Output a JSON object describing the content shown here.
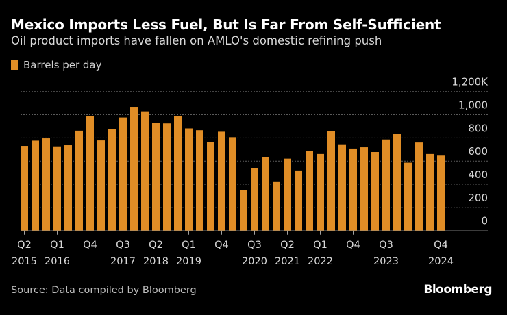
{
  "chart_data": {
    "type": "bar",
    "title": "Mexico Imports Less Fuel, But Is Far From Self-Sufficient",
    "subtitle": "Oil product imports have fallen on AMLO's domestic refining push",
    "legend": [
      "Barrels per day"
    ],
    "legend_placement": "top-left",
    "xlabel": "",
    "ylabel": "",
    "ylim": [
      0,
      1200
    ],
    "yticks": [
      "0",
      "200",
      "400",
      "600",
      "800",
      "1,000",
      "1,200K"
    ],
    "grid": true,
    "color": "#e08d26",
    "categories": [
      "Q2 2015",
      "Q3 2015",
      "Q4 2015",
      "Q1 2016",
      "Q2 2016",
      "Q3 2016",
      "Q4 2016",
      "Q1 2017",
      "Q2 2017",
      "Q3 2017",
      "Q4 2017",
      "Q1 2018",
      "Q2 2018",
      "Q3 2018",
      "Q4 2018",
      "Q1 2019",
      "Q2 2019",
      "Q3 2019",
      "Q4 2019",
      "Q1 2020",
      "Q2 2020",
      "Q3 2020",
      "Q4 2020",
      "Q1 2021",
      "Q2 2021",
      "Q3 2021",
      "Q4 2021",
      "Q1 2022",
      "Q2 2022",
      "Q3 2022",
      "Q4 2022",
      "Q1 2023",
      "Q2 2023",
      "Q3 2023",
      "Q4 2023",
      "Q1 2024",
      "Q2 2024",
      "Q3 2024",
      "Q4 2024"
    ],
    "values": [
      731,
      776,
      796,
      727,
      737,
      862,
      990,
      778,
      876,
      976,
      1068,
      1029,
      931,
      925,
      990,
      882,
      866,
      764,
      853,
      806,
      349,
      539,
      631,
      419,
      621,
      519,
      688,
      661,
      857,
      739,
      708,
      719,
      678,
      786,
      835,
      586,
      760,
      661,
      647
    ],
    "xticks": [
      {
        "index": 0,
        "q": "Q2",
        "year": "2015"
      },
      {
        "index": 3,
        "q": "Q1",
        "year": "2016"
      },
      {
        "index": 6,
        "q": "Q4",
        "year": ""
      },
      {
        "index": 9,
        "q": "Q3",
        "year": "2017"
      },
      {
        "index": 12,
        "q": "Q2",
        "year": "2018"
      },
      {
        "index": 15,
        "q": "Q1",
        "year": "2019"
      },
      {
        "index": 18,
        "q": "Q4",
        "year": ""
      },
      {
        "index": 21,
        "q": "Q3",
        "year": "2020"
      },
      {
        "index": 24,
        "q": "Q2",
        "year": "2021"
      },
      {
        "index": 27,
        "q": "Q1",
        "year": "2022"
      },
      {
        "index": 30,
        "q": "Q4",
        "year": ""
      },
      {
        "index": 33,
        "q": "Q3",
        "year": "2023"
      },
      {
        "index": 38,
        "q": "Q4",
        "year": "2024"
      }
    ]
  },
  "source": "Source: Data compiled by Bloomberg",
  "brand": "Bloomberg"
}
